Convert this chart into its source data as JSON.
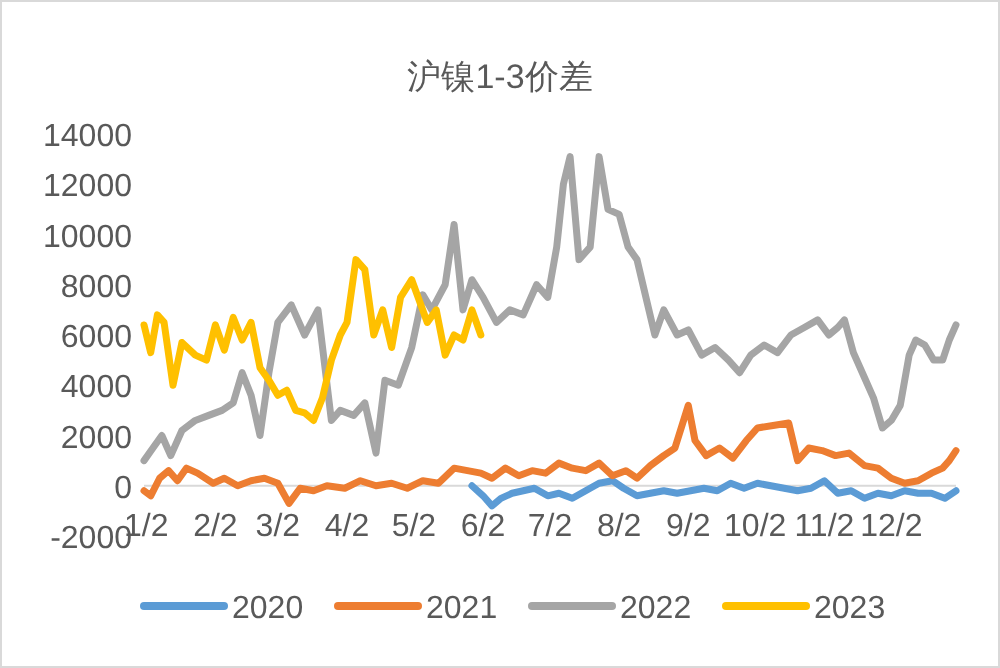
{
  "chart_data": {
    "type": "line",
    "title": "沪镍1-3价差",
    "xlim": [
      "--01-01",
      "--12-31"
    ],
    "xticks": [
      {
        "value": "--01-02",
        "label": "1/2"
      },
      {
        "value": "--02-02",
        "label": "2/2"
      },
      {
        "value": "--03-02",
        "label": "3/2"
      },
      {
        "value": "--04-02",
        "label": "4/2"
      },
      {
        "value": "--05-02",
        "label": "5/2"
      },
      {
        "value": "--06-02",
        "label": "6/2"
      },
      {
        "value": "--07-02",
        "label": "7/2"
      },
      {
        "value": "--08-02",
        "label": "8/2"
      },
      {
        "value": "--09-02",
        "label": "9/2"
      },
      {
        "value": "--10-02",
        "label": "10/2"
      },
      {
        "value": "--11-02",
        "label": "11/2"
      },
      {
        "value": "--12-02",
        "label": "12/2"
      }
    ],
    "ylim": [
      -2000,
      14000
    ],
    "yticks": [
      -2000,
      0,
      2000,
      4000,
      6000,
      8000,
      10000,
      12000,
      14000
    ],
    "grid": false,
    "legend": "bottom",
    "series": [
      {
        "name": "2020",
        "color": "#5b9bd5",
        "x": [
          "--05-28",
          "--06-02",
          "--06-06",
          "--06-10",
          "--06-15",
          "--06-20",
          "--06-25",
          "--07-01",
          "--07-06",
          "--07-12",
          "--07-18",
          "--07-24",
          "--07-30",
          "--08-04",
          "--08-10",
          "--08-16",
          "--08-22",
          "--08-28",
          "--09-03",
          "--09-09",
          "--09-15",
          "--09-21",
          "--09-27",
          "--10-03",
          "--10-09",
          "--10-15",
          "--10-21",
          "--10-27",
          "--11-02",
          "--11-08",
          "--11-14",
          "--11-20",
          "--11-26",
          "--12-02",
          "--12-08",
          "--12-14",
          "--12-20",
          "--12-26",
          "--12-31"
        ],
        "values": [
          0,
          -400,
          -800,
          -500,
          -300,
          -200,
          -100,
          -400,
          -300,
          -500,
          -200,
          100,
          200,
          -100,
          -400,
          -300,
          -200,
          -300,
          -200,
          -100,
          -200,
          100,
          -100,
          100,
          0,
          -100,
          -200,
          -100,
          200,
          -300,
          -200,
          -500,
          -300,
          -400,
          -200,
          -300,
          -300,
          -500,
          -200
        ]
      },
      {
        "name": "2021",
        "color": "#ed7d31",
        "x": [
          "--01-01",
          "--01-04",
          "--01-08",
          "--01-12",
          "--01-16",
          "--01-20",
          "--01-25",
          "--02-01",
          "--02-06",
          "--02-12",
          "--02-18",
          "--02-24",
          "--03-02",
          "--03-07",
          "--03-12",
          "--03-18",
          "--03-24",
          "--04-01",
          "--04-08",
          "--04-15",
          "--04-22",
          "--04-29",
          "--05-06",
          "--05-13",
          "--05-20",
          "--05-26",
          "--06-01",
          "--06-06",
          "--06-12",
          "--06-18",
          "--06-24",
          "--06-30",
          "--07-06",
          "--07-12",
          "--07-18",
          "--07-24",
          "--07-30",
          "--08-05",
          "--08-10",
          "--08-16",
          "--08-22",
          "--08-27",
          "--09-02",
          "--09-05",
          "--09-10",
          "--09-16",
          "--09-22",
          "--09-28",
          "--10-03",
          "--10-10",
          "--10-17",
          "--10-21",
          "--10-26",
          "--11-01",
          "--11-07",
          "--11-13",
          "--11-20",
          "--11-26",
          "--12-02",
          "--12-08",
          "--12-14",
          "--12-20",
          "--12-25",
          "--12-28",
          "--12-31"
        ],
        "values": [
          -200,
          -400,
          300,
          600,
          200,
          700,
          500,
          100,
          300,
          0,
          200,
          300,
          100,
          -700,
          -100,
          -200,
          0,
          -100,
          200,
          0,
          100,
          -100,
          200,
          100,
          700,
          600,
          500,
          300,
          700,
          400,
          600,
          500,
          900,
          700,
          600,
          900,
          400,
          600,
          300,
          800,
          1200,
          1500,
          3200,
          1800,
          1200,
          1500,
          1100,
          1800,
          2300,
          2400,
          2500,
          1000,
          1500,
          1400,
          1200,
          1300,
          800,
          700,
          300,
          100,
          200,
          500,
          700,
          1000,
          1400
        ]
      },
      {
        "name": "2022",
        "color": "#a5a5a5",
        "x": [
          "--01-01",
          "--01-05",
          "--01-09",
          "--01-13",
          "--01-18",
          "--01-24",
          "--01-30",
          "--02-05",
          "--02-10",
          "--02-14",
          "--02-18",
          "--02-22",
          "--02-26",
          "--03-02",
          "--03-08",
          "--03-14",
          "--03-20",
          "--03-26",
          "--03-30",
          "--04-05",
          "--04-10",
          "--04-15",
          "--04-19",
          "--04-25",
          "--05-01",
          "--05-06",
          "--05-10",
          "--05-16",
          "--05-20",
          "--05-24",
          "--05-28",
          "--06-02",
          "--06-08",
          "--06-14",
          "--06-20",
          "--06-26",
          "--07-01",
          "--07-05",
          "--07-08",
          "--07-11",
          "--07-15",
          "--07-20",
          "--07-24",
          "--07-28",
          "--08-02",
          "--08-06",
          "--08-10",
          "--08-14",
          "--08-18",
          "--08-22",
          "--08-28",
          "--09-02",
          "--09-08",
          "--09-14",
          "--09-20",
          "--09-25",
          "--09-30",
          "--10-06",
          "--10-12",
          "--10-18",
          "--10-24",
          "--10-30",
          "--11-04",
          "--11-08",
          "--11-11",
          "--11-15",
          "--11-20",
          "--11-24",
          "--11-28",
          "--12-02",
          "--12-06",
          "--12-10",
          "--12-13",
          "--12-17",
          "--12-21",
          "--12-25",
          "--12-28",
          "--12-31"
        ],
        "values": [
          1000,
          1500,
          2000,
          1200,
          2200,
          2600,
          2800,
          3000,
          3300,
          4500,
          3600,
          2000,
          4500,
          6500,
          7200,
          6000,
          7000,
          2600,
          3000,
          2800,
          3300,
          1300,
          4200,
          4000,
          5500,
          7600,
          7000,
          8000,
          10400,
          7000,
          8200,
          7500,
          6500,
          7000,
          6800,
          8000,
          7500,
          9500,
          12000,
          13100,
          9000,
          9500,
          13100,
          11000,
          10800,
          9500,
          9000,
          7500,
          6000,
          7000,
          6000,
          6200,
          5200,
          5500,
          5000,
          4500,
          5200,
          5600,
          5300,
          6000,
          6300,
          6600,
          6000,
          6300,
          6600,
          5300,
          4300,
          3500,
          2300,
          2600,
          3200,
          5200,
          5800,
          5600,
          5000,
          5000,
          5800,
          6400
        ]
      },
      {
        "name": "2023",
        "color": "#ffc000",
        "x": [
          "--01-01",
          "--01-04",
          "--01-07",
          "--01-10",
          "--01-14",
          "--01-18",
          "--01-24",
          "--01-29",
          "--02-02",
          "--02-06",
          "--02-10",
          "--02-14",
          "--02-18",
          "--02-22",
          "--02-26",
          "--03-02",
          "--03-06",
          "--03-10",
          "--03-14",
          "--03-18",
          "--03-22",
          "--03-26",
          "--03-30",
          "--04-02",
          "--04-06",
          "--04-10",
          "--04-14",
          "--04-18",
          "--04-22",
          "--04-26",
          "--05-01",
          "--05-08",
          "--05-12",
          "--05-16",
          "--05-20",
          "--05-24",
          "--05-28",
          "--06-01"
        ],
        "values": [
          6400,
          5300,
          6800,
          6500,
          4000,
          5700,
          5200,
          5000,
          6400,
          5400,
          6700,
          5800,
          6500,
          4700,
          4200,
          3600,
          3800,
          3000,
          2900,
          2600,
          3500,
          5000,
          6000,
          6500,
          9000,
          8600,
          6000,
          7000,
          5500,
          7500,
          8200,
          6500,
          7000,
          5200,
          6000,
          5800,
          7000,
          6000
        ]
      }
    ]
  }
}
